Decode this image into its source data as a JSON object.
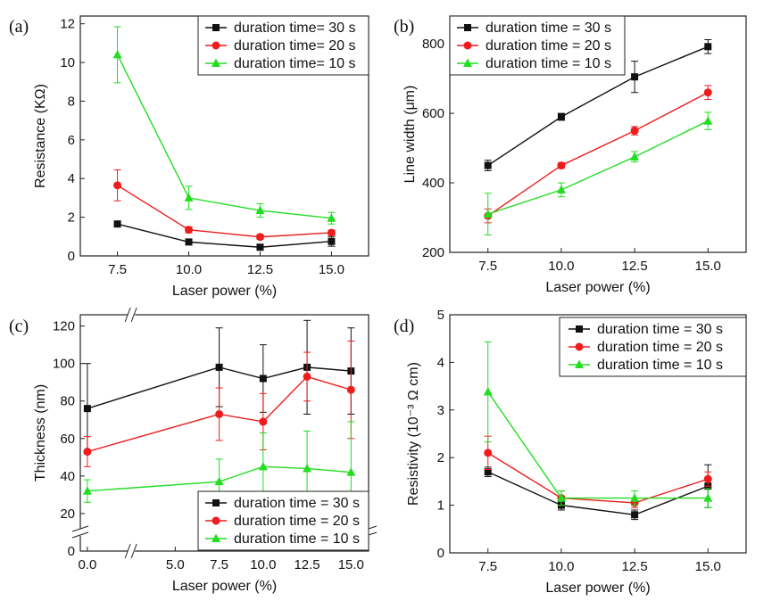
{
  "colors": {
    "s30": "#111111",
    "s20": "#ee1c1c",
    "s10": "#22dd22"
  },
  "chart_data": [
    {
      "panel_label": "(a)",
      "type": "line",
      "xlabel": "Laser power (%)",
      "ylabel": "Resistance (KΩ)",
      "xlim": [
        6.2,
        16.3
      ],
      "ylim": [
        0,
        12.4
      ],
      "xticks": [
        7.5,
        10.0,
        12.5,
        15.0
      ],
      "xtick_labels": [
        "7.5",
        "10.0",
        "12.5",
        "15.0"
      ],
      "yticks": [
        0,
        2,
        4,
        6,
        8,
        10,
        12
      ],
      "ytick_labels": [
        "0",
        "2",
        "4",
        "6",
        "8",
        "10",
        "12"
      ],
      "legend": "top-right",
      "series": [
        {
          "name": "duration time= 30 s",
          "marker": "square",
          "x": [
            7.5,
            10.0,
            12.5,
            15.0
          ],
          "y": [
            1.65,
            0.72,
            0.45,
            0.75
          ],
          "err": [
            0.15,
            0.1,
            0.08,
            0.25
          ]
        },
        {
          "name": "duration time= 20 s",
          "marker": "circle",
          "x": [
            7.5,
            10.0,
            12.5,
            15.0
          ],
          "y": [
            3.65,
            1.35,
            0.98,
            1.2
          ],
          "err": [
            0.8,
            0.15,
            0.12,
            0.12
          ]
        },
        {
          "name": "duration time= 10 s",
          "marker": "triangle",
          "x": [
            7.5,
            10.0,
            12.5,
            15.0
          ],
          "y": [
            10.4,
            3.0,
            2.35,
            1.95
          ],
          "err": [
            1.45,
            0.6,
            0.35,
            0.3
          ]
        }
      ]
    },
    {
      "panel_label": "(b)",
      "type": "line",
      "xlabel": "Laser power (%)",
      "ylabel": "Line width (μm)",
      "xlim": [
        6.2,
        16.3
      ],
      "ylim": [
        200,
        880
      ],
      "xticks": [
        7.5,
        10.0,
        12.5,
        15.0
      ],
      "xtick_labels": [
        "7.5",
        "10.0",
        "12.5",
        "15.0"
      ],
      "yticks": [
        200,
        400,
        600,
        800
      ],
      "ytick_labels": [
        "200",
        "400",
        "600",
        "800"
      ],
      "legend": "top-left",
      "series": [
        {
          "name": "duration time = 30 s",
          "marker": "square",
          "x": [
            7.5,
            10.0,
            12.5,
            15.0
          ],
          "y": [
            450,
            590,
            705,
            792
          ],
          "err": [
            15,
            10,
            45,
            20
          ]
        },
        {
          "name": "duration time = 20 s",
          "marker": "circle",
          "x": [
            7.5,
            10.0,
            12.5,
            15.0
          ],
          "y": [
            305,
            450,
            550,
            660
          ],
          "err": [
            20,
            8,
            12,
            20
          ]
        },
        {
          "name": "duration time = 10 s",
          "marker": "triangle",
          "x": [
            7.5,
            10.0,
            12.5,
            15.0
          ],
          "y": [
            310,
            380,
            475,
            578
          ],
          "err": [
            60,
            20,
            15,
            25
          ]
        }
      ]
    },
    {
      "panel_label": "(c)",
      "type": "line",
      "xlabel": "Laser power (%)",
      "ylabel": "Thickness (nm)",
      "xlim": [
        -0.4,
        16.0
      ],
      "ylim": [
        0,
        126
      ],
      "xticks": [
        0.0,
        5.0,
        7.5,
        10.0,
        12.5,
        15.0
      ],
      "xtick_labels": [
        "0.0",
        "5.0",
        "7.5",
        "10.0",
        "12.5",
        "15.0"
      ],
      "yticks": [
        0,
        20,
        40,
        60,
        80,
        100,
        120
      ],
      "ytick_labels": [
        "0",
        "20",
        "40",
        "60",
        "80",
        "100",
        "120"
      ],
      "legend": "bottom-right",
      "series": [
        {
          "name": "duration time = 30 s",
          "marker": "square",
          "x": [
            0.0,
            7.5,
            10.0,
            12.5,
            15.0
          ],
          "y": [
            76,
            98,
            92,
            98,
            96
          ],
          "err": [
            24,
            21,
            18,
            25,
            23
          ]
        },
        {
          "name": "duration time = 20 s",
          "marker": "circle",
          "x": [
            0.0,
            7.5,
            10.0,
            12.5,
            15.0
          ],
          "y": [
            53,
            73,
            69,
            93,
            86
          ],
          "err": [
            8,
            14,
            15,
            13,
            26
          ]
        },
        {
          "name": "duration time = 10 s",
          "marker": "triangle",
          "x": [
            0.0,
            7.5,
            10.0,
            12.5,
            15.0
          ],
          "y": [
            32,
            37,
            45,
            44,
            42
          ],
          "err": [
            6,
            12,
            18,
            20,
            27
          ]
        }
      ]
    },
    {
      "panel_label": "(d)",
      "type": "line",
      "xlabel": "Laser power (%)",
      "ylabel": "Resistivity (10⁻³ Ω cm)",
      "xlim": [
        6.2,
        16.3
      ],
      "ylim": [
        0,
        5
      ],
      "xticks": [
        7.5,
        10.0,
        12.5,
        15.0
      ],
      "xtick_labels": [
        "7.5",
        "10.0",
        "12.5",
        "15.0"
      ],
      "yticks": [
        0,
        1,
        2,
        3,
        4,
        5
      ],
      "ytick_labels": [
        "0",
        "1",
        "2",
        "3",
        "4",
        "5"
      ],
      "legend": "top-right",
      "series": [
        {
          "name": "duration time = 30 s",
          "marker": "square",
          "x": [
            7.5,
            10.0,
            12.5,
            15.0
          ],
          "y": [
            1.7,
            1.0,
            0.8,
            1.4
          ],
          "err": [
            0.1,
            0.1,
            0.1,
            0.45
          ]
        },
        {
          "name": "duration time = 20 s",
          "marker": "circle",
          "x": [
            7.5,
            10.0,
            12.5,
            15.0
          ],
          "y": [
            2.1,
            1.15,
            1.05,
            1.55
          ],
          "err": [
            0.35,
            0.15,
            0.1,
            0.15
          ]
        },
        {
          "name": "duration time = 10 s",
          "marker": "triangle",
          "x": [
            7.5,
            10.0,
            12.5,
            15.0
          ],
          "y": [
            3.38,
            1.15,
            1.15,
            1.15
          ],
          "err": [
            1.05,
            0.15,
            0.15,
            0.2
          ]
        }
      ]
    }
  ]
}
